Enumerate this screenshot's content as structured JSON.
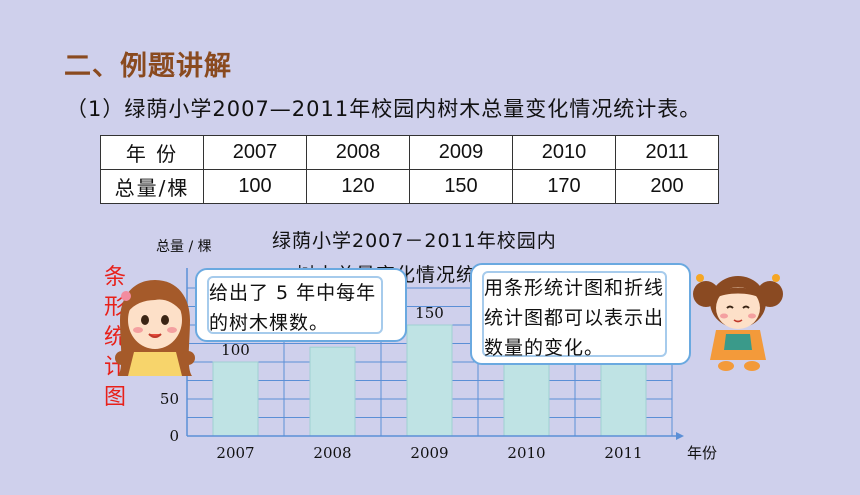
{
  "heading": "二、例题讲解",
  "subtitle": "（1）绿荫小学2007—2011年校园内树木总量变化情况统计表。",
  "table": {
    "row_headers": [
      "年  份",
      "总量/棵"
    ],
    "years": [
      "2007",
      "2008",
      "2009",
      "2010",
      "2011"
    ],
    "totals": [
      "100",
      "120",
      "150",
      "170",
      "200"
    ]
  },
  "chart_title_line1": "绿荫小学2007－2011年校园内",
  "chart_title_line2": "树木总量变化情况统计图",
  "vertical_label": [
    "条",
    "形",
    "统",
    "计",
    "图"
  ],
  "bubble_left": "给出了 5 年中每年的树木棵数。",
  "bubble_right": "用条形统计图和折线统计图都可以表示出数量的变化。",
  "chart_data": {
    "type": "bar",
    "categories": [
      "2007",
      "2008",
      "2009",
      "2010",
      "2011"
    ],
    "values": [
      100,
      120,
      150,
      170,
      200
    ],
    "value_labels": [
      "100",
      "120",
      "150",
      "170",
      "200"
    ],
    "title": "绿荫小学2007－2011年校园内树木总量变化情况统计图",
    "xlabel": "年份",
    "ylabel": "总量 / 棵",
    "yticks": [
      "0",
      "50",
      "100"
    ],
    "ylim": [
      0,
      200
    ],
    "grid": true,
    "bar_color": "#bfe3e4",
    "axis_color": "#5b8fd6"
  },
  "colors": {
    "background": "#cfd0ec",
    "heading": "#8a4a1f",
    "vertical_label": "#e8201a",
    "bubble_border": "#6aa9e0"
  },
  "icons": {
    "left_character": "girl-with-pigtails-icon",
    "right_character": "girl-reading-book-icon"
  }
}
